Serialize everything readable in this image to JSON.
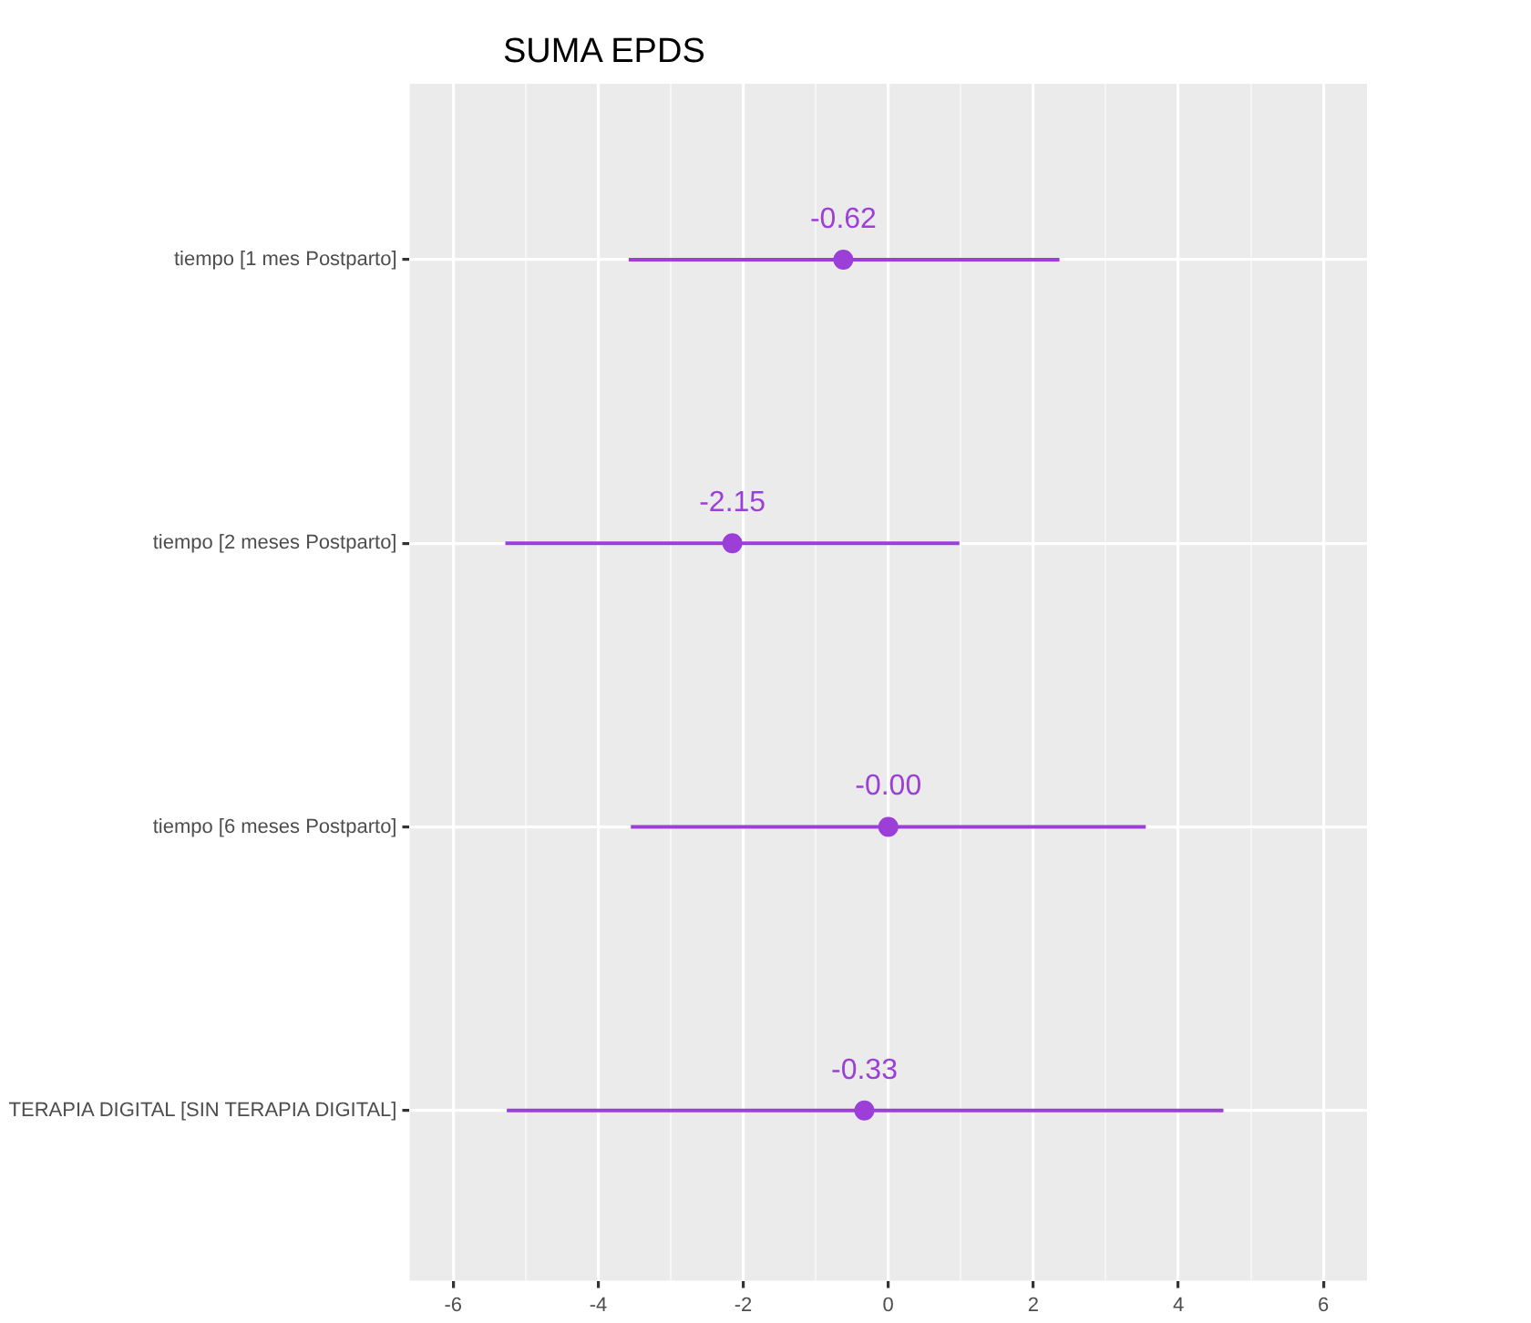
{
  "chart_data": {
    "type": "scatter",
    "title": "SUMA EPDS",
    "orientation": "horizontal",
    "categories": [
      "tiempo [1 mes Postparto]",
      "tiempo [2 meses Postparto]",
      "tiempo [6 meses Postparto]",
      "TERAPIA DIGITAL [SIN TERAPIA DIGITAL]"
    ],
    "series": [
      {
        "color": "#9b3fd8",
        "values": [
          -0.62,
          -2.15,
          0,
          -0.33
        ],
        "errors": [
          [
            -3.58,
            2.36
          ],
          [
            -5.28,
            0.98
          ],
          [
            -3.55,
            3.55
          ],
          [
            -5.26,
            4.62
          ]
        ],
        "value_labels": [
          "-0.62",
          "-2.15",
          "-0.00",
          "-0.33"
        ]
      }
    ],
    "xlim": [
      -6.6,
      6.6
    ],
    "xticks": [
      -6,
      {
        "value": -5,
        "label": null
      },
      -4,
      {
        "value": -3,
        "label": null
      },
      -2,
      {
        "value": -1,
        "label": null
      },
      0,
      {
        "value": 1,
        "label": null
      },
      2,
      {
        "value": 3,
        "label": null
      },
      4,
      {
        "value": 5,
        "label": null
      },
      6
    ],
    "grid": true,
    "legend": false,
    "marker": "circle"
  }
}
